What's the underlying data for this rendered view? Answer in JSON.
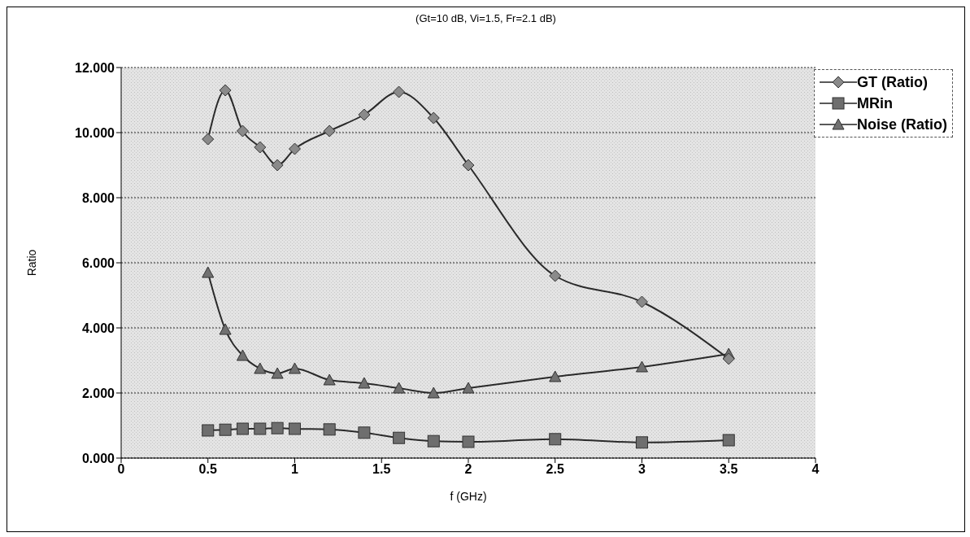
{
  "chart_data": {
    "type": "line",
    "title": "(Gt=10 dB, Vi=1.5, Fr=2.1 dB)",
    "xlabel": "f (GHz)",
    "ylabel": "Ratio",
    "xlim": [
      0,
      4
    ],
    "xticks": [
      0,
      0.5,
      1,
      1.5,
      2,
      2.5,
      3,
      3.5,
      4
    ],
    "ylim": [
      0,
      12
    ],
    "yticks": [
      {
        "value": 0,
        "label": "0.000"
      },
      {
        "value": 2,
        "label": "2.000"
      },
      {
        "value": 4,
        "label": "4.000"
      },
      {
        "value": 6,
        "label": "6.000"
      },
      {
        "value": 8,
        "label": "8.000"
      },
      {
        "value": 10,
        "label": "10.000"
      },
      {
        "value": 12,
        "label": "12.000"
      }
    ],
    "grid": "y",
    "legend": "top right",
    "x": [
      0.5,
      0.6,
      0.7,
      0.8,
      0.9,
      1.0,
      1.2,
      1.4,
      1.6,
      1.8,
      2.0,
      2.5,
      3.0,
      3.5
    ],
    "series": [
      {
        "name": "GT (Ratio)",
        "color": "#8a8a8a",
        "marker": "diamond",
        "values": [
          9.8,
          11.3,
          10.05,
          9.55,
          9.0,
          9.5,
          10.05,
          10.55,
          11.25,
          10.45,
          9.0,
          5.6,
          4.8,
          3.05
        ]
      },
      {
        "name": "MRin",
        "color": "#6e6e6e",
        "marker": "square",
        "values": [
          0.85,
          0.87,
          0.9,
          0.9,
          0.92,
          0.9,
          0.88,
          0.78,
          0.62,
          0.52,
          0.5,
          0.58,
          0.48,
          0.55
        ]
      },
      {
        "name": "Noise (Ratio)",
        "color": "#707070",
        "marker": "triangle",
        "values": [
          5.7,
          3.95,
          3.15,
          2.75,
          2.6,
          2.75,
          2.4,
          2.3,
          2.15,
          2.0,
          2.15,
          2.5,
          2.8,
          3.2
        ]
      }
    ]
  }
}
